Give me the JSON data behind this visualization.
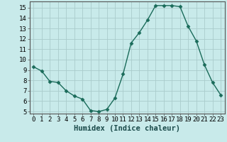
{
  "x": [
    0,
    1,
    2,
    3,
    4,
    5,
    6,
    7,
    8,
    9,
    10,
    11,
    12,
    13,
    14,
    15,
    16,
    17,
    18,
    19,
    20,
    21,
    22,
    23
  ],
  "y": [
    9.3,
    8.9,
    7.9,
    7.8,
    7.0,
    6.5,
    6.2,
    5.1,
    5.0,
    5.2,
    6.3,
    8.6,
    11.6,
    12.6,
    13.8,
    15.2,
    15.2,
    15.2,
    15.1,
    13.2,
    11.8,
    9.5,
    7.8,
    6.6
  ],
  "line_color": "#1a6b5a",
  "marker": "D",
  "marker_size": 2.5,
  "bg_color": "#c8eaea",
  "grid_color": "#aacccc",
  "xlabel": "Humidex (Indice chaleur)",
  "xlim": [
    -0.5,
    23.5
  ],
  "ylim": [
    4.8,
    15.6
  ],
  "yticks": [
    5,
    6,
    7,
    8,
    9,
    10,
    11,
    12,
    13,
    14,
    15
  ],
  "xticks": [
    0,
    1,
    2,
    3,
    4,
    5,
    6,
    7,
    8,
    9,
    10,
    11,
    12,
    13,
    14,
    15,
    16,
    17,
    18,
    19,
    20,
    21,
    22,
    23
  ],
  "xlabel_fontsize": 7.5,
  "tick_fontsize": 6.5,
  "linewidth": 1.0
}
